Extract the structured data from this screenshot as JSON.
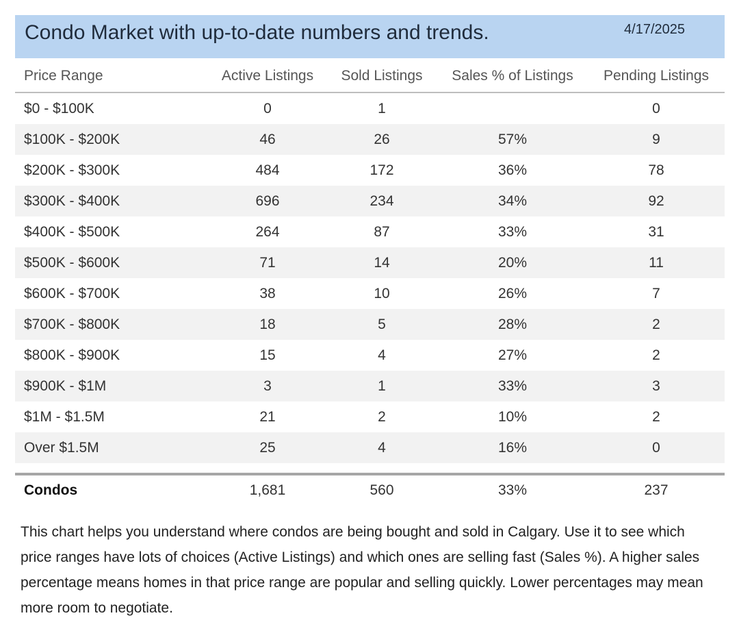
{
  "header": {
    "title": "Condo Market with up-to-date numbers and trends.",
    "date": "4/17/2025",
    "background_color": "#b9d4f1"
  },
  "chart_data": {
    "type": "table",
    "title": "Condo Market with up-to-date numbers and trends.",
    "columns": [
      "Price Range",
      "Active Listings",
      "Sold Listings",
      "Sales % of Listings",
      "Pending Listings"
    ],
    "rows": [
      [
        "$0 - $100K",
        "0",
        "1",
        "",
        "0"
      ],
      [
        "$100K - $200K",
        "46",
        "26",
        "57%",
        "9"
      ],
      [
        "$200K - $300K",
        "484",
        "172",
        "36%",
        "78"
      ],
      [
        "$300K - $400K",
        "696",
        "234",
        "34%",
        "92"
      ],
      [
        "$400K - $500K",
        "264",
        "87",
        "33%",
        "31"
      ],
      [
        "$500K - $600K",
        "71",
        "14",
        "20%",
        "11"
      ],
      [
        "$600K - $700K",
        "38",
        "10",
        "26%",
        "7"
      ],
      [
        "$700K - $800K",
        "18",
        "5",
        "28%",
        "2"
      ],
      [
        "$800K - $900K",
        "15",
        "4",
        "27%",
        "2"
      ],
      [
        "$900K - $1M",
        "3",
        "1",
        "33%",
        "3"
      ],
      [
        "$1M - $1.5M",
        "21",
        "2",
        "10%",
        "2"
      ],
      [
        "Over $1.5M",
        "25",
        "4",
        "16%",
        "0"
      ]
    ],
    "total": [
      "Condos",
      "1,681",
      "560",
      "33%",
      "237"
    ]
  },
  "description": "This chart helps you understand where condos are being bought and sold in Calgary. Use it to see which price ranges have lots of choices (Active Listings) and which ones are selling fast (Sales %). A higher sales percentage means homes in that price range are popular and selling quickly. Lower percentages may mean more room to negotiate."
}
